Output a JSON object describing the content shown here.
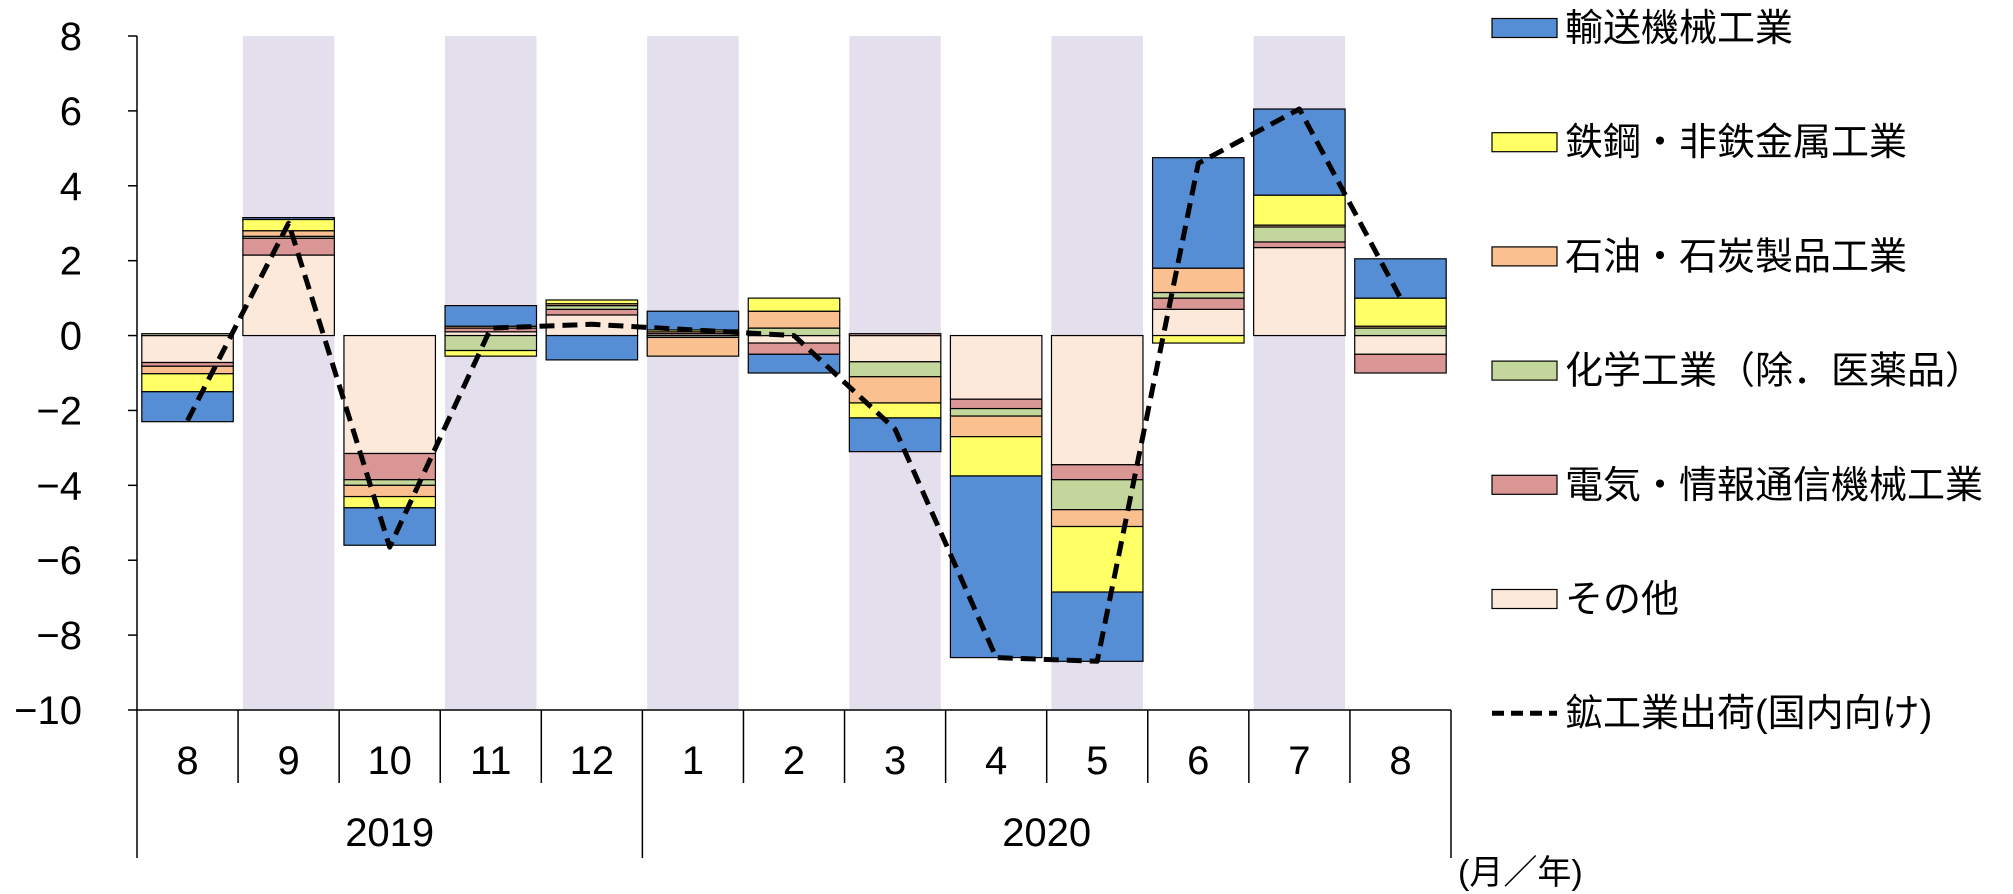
{
  "chart_data": {
    "type": "bar",
    "stacked": true,
    "categories": [
      "8",
      "9",
      "10",
      "11",
      "12",
      "1",
      "2",
      "3",
      "4",
      "5",
      "6",
      "7",
      "8"
    ],
    "years": [
      "2019",
      "2020"
    ],
    "xlabel": "(月／年)",
    "ylim": [
      -10,
      8
    ],
    "yticks": [
      "8",
      "6",
      "4",
      "2",
      "0",
      "−2",
      "−4",
      "−6",
      "−8",
      "−10"
    ],
    "grid": false,
    "legend_position": "right",
    "shaded": [
      false,
      true,
      false,
      true,
      false,
      true,
      false,
      true,
      false,
      true,
      false,
      true,
      false
    ],
    "shade_color": "#E4DFEC",
    "series": [
      {
        "name": "輸送機械工業",
        "type": "bar",
        "color": "#558ED5",
        "values": [
          -0.8,
          0.05,
          -1.0,
          0.55,
          -0.65,
          0.5,
          -0.5,
          -0.9,
          -4.85,
          -1.85,
          2.95,
          2.3,
          1.05
        ]
      },
      {
        "name": "鉄鋼・非鉄金属工業",
        "type": "bar",
        "color": "#FFFF66",
        "values": [
          -0.48,
          0.3,
          -0.3,
          -0.15,
          0.1,
          0.05,
          0.35,
          -0.4,
          -1.05,
          -1.75,
          -0.2,
          0.8,
          0.75
        ]
      },
      {
        "name": "石油・石炭製品工業",
        "type": "bar",
        "color": "#FAC090",
        "values": [
          -0.2,
          0.15,
          -0.3,
          0.05,
          0.05,
          -0.5,
          0.45,
          -0.7,
          -0.55,
          -0.45,
          0.65,
          0.05,
          0.05
        ]
      },
      {
        "name": "化学工業（除．医薬品）",
        "type": "bar",
        "color": "#C3D69B",
        "values": [
          0.05,
          0.05,
          -0.15,
          -0.4,
          0.1,
          -0.05,
          0.2,
          -0.4,
          -0.2,
          -0.8,
          0.15,
          0.4,
          0.2
        ]
      },
      {
        "name": "電気・情報通信機械工業",
        "type": "bar",
        "color": "#D99694",
        "values": [
          -0.1,
          0.45,
          -0.7,
          0.1,
          0.15,
          0.05,
          -0.3,
          0.05,
          -0.25,
          -0.4,
          0.3,
          0.15,
          -0.5
        ]
      },
      {
        "name": "その他",
        "type": "bar",
        "color": "#FDE9D9",
        "values": [
          -0.72,
          2.15,
          -3.15,
          0.1,
          0.55,
          0.05,
          -0.2,
          -0.7,
          -1.7,
          -3.45,
          0.7,
          2.35,
          -0.5
        ]
      },
      {
        "name": "鉱工業出荷(国内向け)",
        "type": "line",
        "line_style": "dashed",
        "color": "#000000",
        "values": [
          -2.27,
          3.0,
          -5.65,
          0.2,
          0.3,
          0.15,
          0.0,
          -2.5,
          -8.6,
          -8.7,
          4.6,
          6.05,
          1.0
        ]
      }
    ]
  }
}
